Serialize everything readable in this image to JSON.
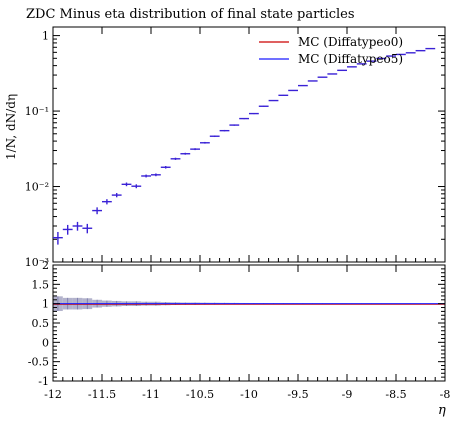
{
  "chart_data": [
    {
      "type": "scatter",
      "panel": "main",
      "title": "ZDC Minus eta distribution of final state particles",
      "ylabel": "1/N, dN/dη",
      "yscale": "log",
      "ylim": [
        0.001,
        1.3
      ],
      "xlim": [
        -12,
        -8
      ],
      "y_tick_labels": [
        "1",
        "10⁻¹",
        "10⁻²",
        "10⁻³"
      ],
      "y_tick_values": [
        1,
        0.1,
        0.01,
        0.001
      ],
      "legend": {
        "placement": "top-right",
        "entries": [
          {
            "label": "MC (Diffatypeo0)",
            "color": "#cc0000"
          },
          {
            "label": "MC (Diffatypeo5)",
            "color": "#1a1aff"
          }
        ]
      },
      "series": [
        {
          "name": "MC (Diffatypeo5)",
          "color": "#3a22d6",
          "bin_width": 0.1,
          "x": [
            -11.95,
            -11.85,
            -11.75,
            -11.65,
            -11.55,
            -11.45,
            -11.35,
            -11.25,
            -11.15,
            -11.05,
            -10.95,
            -10.85,
            -10.75,
            -10.65,
            -10.55,
            -10.45,
            -10.35,
            -10.25,
            -10.15,
            -10.05,
            -9.95,
            -9.85,
            -9.75,
            -9.65,
            -9.55,
            -9.45,
            -9.35,
            -9.25,
            -9.15,
            -9.05,
            -8.95,
            -8.85,
            -8.75,
            -8.65,
            -8.55,
            -8.45,
            -8.35,
            -8.25,
            -8.15
          ],
          "y": [
            0.0021,
            0.0027,
            0.003,
            0.0028,
            0.0048,
            0.0063,
            0.0077,
            0.0107,
            0.0101,
            0.0138,
            0.0143,
            0.018,
            0.0233,
            0.0272,
            0.0313,
            0.038,
            0.0464,
            0.055,
            0.0652,
            0.0795,
            0.0926,
            0.1158,
            0.1378,
            0.1617,
            0.1876,
            0.2175,
            0.2506,
            0.281,
            0.3102,
            0.3465,
            0.3854,
            0.422,
            0.4587,
            0.4976,
            0.5357,
            0.5627,
            0.5914,
            0.6315,
            0.6725
          ],
          "y_err": [
            0.0004,
            0.0004,
            0.0004,
            0.0004,
            0.0005,
            0.0005,
            0.0005,
            0.0006,
            0.0006,
            0.0006,
            0.0006,
            0.0007,
            0.0008,
            0.0008,
            0.0009,
            0.001,
            0.0011,
            0.0012,
            0.0013,
            0.0014,
            0.0015,
            0.0017,
            0.0019,
            0.002,
            0.0022,
            0.0024,
            0.0025,
            0.0027,
            0.0028,
            0.003,
            0.0031,
            0.0033,
            0.0035,
            0.0036,
            0.0037,
            0.0038,
            0.0039,
            0.004,
            0.0042
          ]
        }
      ]
    },
    {
      "type": "line",
      "panel": "ratio",
      "xlabel": "η",
      "xlim": [
        -12,
        -8
      ],
      "ylim": [
        -1,
        2
      ],
      "x_tick_labels": [
        "-12",
        "-11.5",
        "-11",
        "-10.5",
        "-10",
        "-9.5",
        "-9",
        "-8.5",
        "-8"
      ],
      "x_tick_values": [
        -12,
        -11.5,
        -11,
        -10.5,
        -10,
        -9.5,
        -9,
        -8.5,
        -8
      ],
      "y_tick_labels": [
        "2",
        "1.5",
        "1",
        "0.5",
        "0",
        "-0.5",
        "-1"
      ],
      "y_tick_values": [
        2,
        1.5,
        1,
        0.5,
        0,
        -0.5,
        -1
      ],
      "reference": 1,
      "band": {
        "color": "#b3b3cc",
        "x": [
          -11.95,
          -11.85,
          -11.75,
          -11.65,
          -11.55,
          -11.45,
          -11.35,
          -11.25,
          -11.15,
          -11.05,
          -10.95,
          -10.85,
          -10.75,
          -10.65,
          -10.55,
          -10.45,
          -10.35,
          -10.25,
          -10.15,
          -10.05,
          -9.95,
          -9.85,
          -9.75,
          -9.65,
          -9.55,
          -9.45,
          -9.35,
          -9.25,
          -9.15,
          -9.05,
          -8.95,
          -8.85,
          -8.75,
          -8.65,
          -8.55,
          -8.45,
          -8.35,
          -8.25,
          -8.15
        ],
        "half_width": [
          0.19,
          0.15,
          0.15,
          0.14,
          0.1,
          0.08,
          0.07,
          0.06,
          0.06,
          0.05,
          0.05,
          0.04,
          0.035,
          0.03,
          0.03,
          0.026,
          0.024,
          0.022,
          0.02,
          0.018,
          0.016,
          0.015,
          0.014,
          0.013,
          0.012,
          0.011,
          0.01,
          0.01,
          0.009,
          0.009,
          0.008,
          0.008,
          0.008,
          0.007,
          0.007,
          0.007,
          0.007,
          0.006,
          0.006
        ]
      },
      "series": [
        {
          "name": "MC (Diffatypeo0)",
          "color": "#cc0000",
          "value": 1
        },
        {
          "name": "MC (Diffatypeo5)",
          "color": "#1a1aff",
          "value": 1
        }
      ]
    }
  ]
}
